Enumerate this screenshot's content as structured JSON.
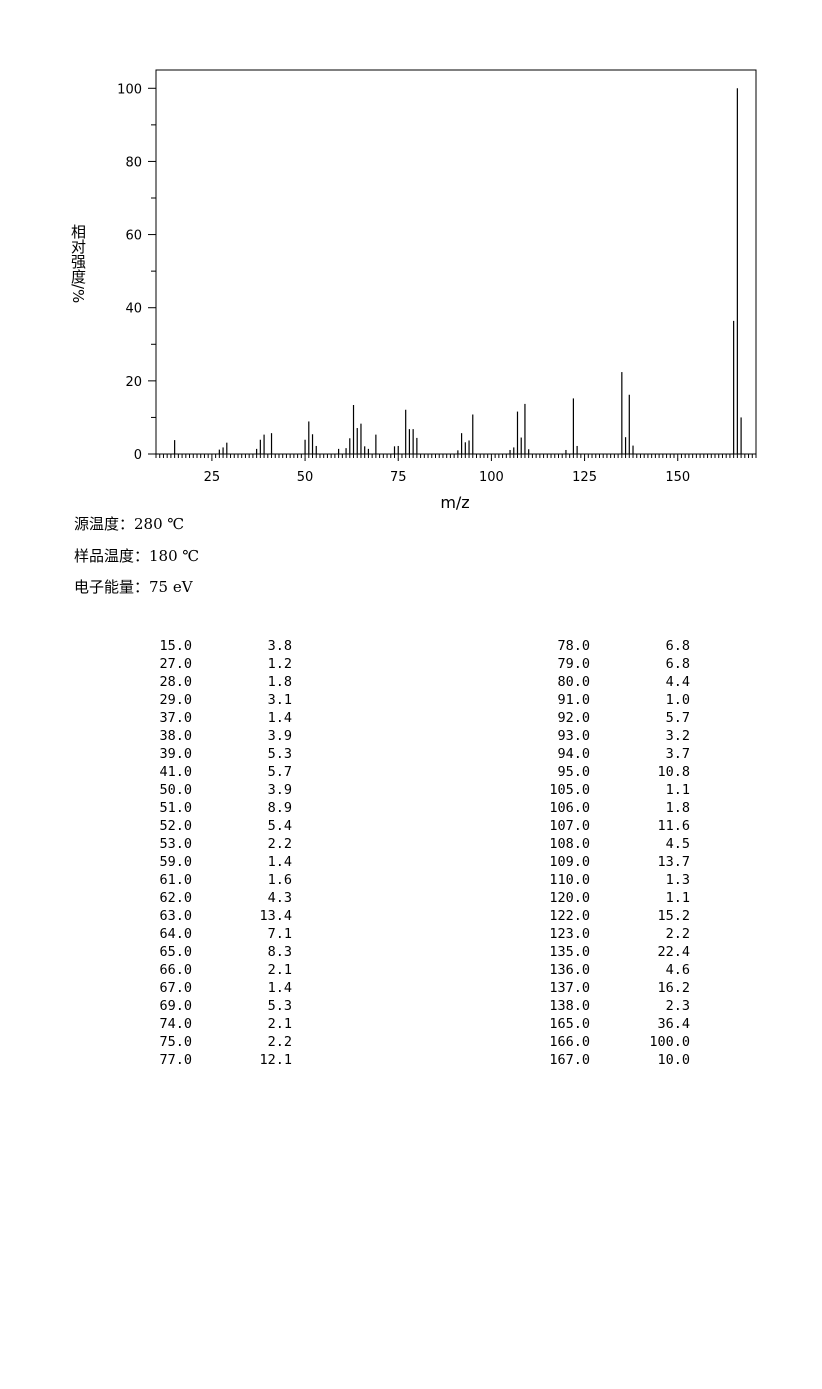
{
  "chart_data": {
    "type": "bar",
    "xlabel": "m/z",
    "ylabel": "相对强度/%",
    "xlim": [
      10,
      171
    ],
    "ylim": [
      0,
      105
    ],
    "x_ticks": [
      "25",
      "50",
      "75",
      "100",
      "125",
      "150"
    ],
    "y_ticks": [
      "0",
      "20",
      "40",
      "60",
      "80",
      "100"
    ],
    "grid": false,
    "peaks": [
      {
        "mz": 15.0,
        "intensity": 3.8
      },
      {
        "mz": 27.0,
        "intensity": 1.2
      },
      {
        "mz": 28.0,
        "intensity": 1.8
      },
      {
        "mz": 29.0,
        "intensity": 3.1
      },
      {
        "mz": 37.0,
        "intensity": 1.4
      },
      {
        "mz": 38.0,
        "intensity": 3.9
      },
      {
        "mz": 39.0,
        "intensity": 5.3
      },
      {
        "mz": 41.0,
        "intensity": 5.7
      },
      {
        "mz": 50.0,
        "intensity": 3.9
      },
      {
        "mz": 51.0,
        "intensity": 8.9
      },
      {
        "mz": 52.0,
        "intensity": 5.4
      },
      {
        "mz": 53.0,
        "intensity": 2.2
      },
      {
        "mz": 59.0,
        "intensity": 1.4
      },
      {
        "mz": 61.0,
        "intensity": 1.6
      },
      {
        "mz": 62.0,
        "intensity": 4.3
      },
      {
        "mz": 63.0,
        "intensity": 13.4
      },
      {
        "mz": 64.0,
        "intensity": 7.1
      },
      {
        "mz": 65.0,
        "intensity": 8.3
      },
      {
        "mz": 66.0,
        "intensity": 2.1
      },
      {
        "mz": 67.0,
        "intensity": 1.4
      },
      {
        "mz": 69.0,
        "intensity": 5.3
      },
      {
        "mz": 74.0,
        "intensity": 2.1
      },
      {
        "mz": 75.0,
        "intensity": 2.2
      },
      {
        "mz": 77.0,
        "intensity": 12.1
      },
      {
        "mz": 78.0,
        "intensity": 6.8
      },
      {
        "mz": 79.0,
        "intensity": 6.8
      },
      {
        "mz": 80.0,
        "intensity": 4.4
      },
      {
        "mz": 91.0,
        "intensity": 1.0
      },
      {
        "mz": 92.0,
        "intensity": 5.7
      },
      {
        "mz": 93.0,
        "intensity": 3.2
      },
      {
        "mz": 94.0,
        "intensity": 3.7
      },
      {
        "mz": 95.0,
        "intensity": 10.8
      },
      {
        "mz": 105.0,
        "intensity": 1.1
      },
      {
        "mz": 106.0,
        "intensity": 1.8
      },
      {
        "mz": 107.0,
        "intensity": 11.6
      },
      {
        "mz": 108.0,
        "intensity": 4.5
      },
      {
        "mz": 109.0,
        "intensity": 13.7
      },
      {
        "mz": 110.0,
        "intensity": 1.3
      },
      {
        "mz": 120.0,
        "intensity": 1.1
      },
      {
        "mz": 122.0,
        "intensity": 15.2
      },
      {
        "mz": 123.0,
        "intensity": 2.2
      },
      {
        "mz": 135.0,
        "intensity": 22.4
      },
      {
        "mz": 136.0,
        "intensity": 4.6
      },
      {
        "mz": 137.0,
        "intensity": 16.2
      },
      {
        "mz": 138.0,
        "intensity": 2.3
      },
      {
        "mz": 165.0,
        "intensity": 36.4
      },
      {
        "mz": 166.0,
        "intensity": 100.0
      },
      {
        "mz": 167.0,
        "intensity": 10.0
      }
    ]
  },
  "conditions": {
    "source_temp": "源温度：280 ℃",
    "sample_temp": "样品温度：180 ℃",
    "electron_energy": "电子能量：75 eV"
  },
  "table": {
    "left": [
      [
        "15.0",
        "3.8"
      ],
      [
        "27.0",
        "1.2"
      ],
      [
        "28.0",
        "1.8"
      ],
      [
        "29.0",
        "3.1"
      ],
      [
        "37.0",
        "1.4"
      ],
      [
        "38.0",
        "3.9"
      ],
      [
        "39.0",
        "5.3"
      ],
      [
        "41.0",
        "5.7"
      ],
      [
        "50.0",
        "3.9"
      ],
      [
        "51.0",
        "8.9"
      ],
      [
        "52.0",
        "5.4"
      ],
      [
        "53.0",
        "2.2"
      ],
      [
        "59.0",
        "1.4"
      ],
      [
        "61.0",
        "1.6"
      ],
      [
        "62.0",
        "4.3"
      ],
      [
        "63.0",
        "13.4"
      ],
      [
        "64.0",
        "7.1"
      ],
      [
        "65.0",
        "8.3"
      ],
      [
        "66.0",
        "2.1"
      ],
      [
        "67.0",
        "1.4"
      ],
      [
        "69.0",
        "5.3"
      ],
      [
        "74.0",
        "2.1"
      ],
      [
        "75.0",
        "2.2"
      ],
      [
        "77.0",
        "12.1"
      ]
    ],
    "right": [
      [
        "78.0",
        "6.8"
      ],
      [
        "79.0",
        "6.8"
      ],
      [
        "80.0",
        "4.4"
      ],
      [
        "91.0",
        "1.0"
      ],
      [
        "92.0",
        "5.7"
      ],
      [
        "93.0",
        "3.2"
      ],
      [
        "94.0",
        "3.7"
      ],
      [
        "95.0",
        "10.8"
      ],
      [
        "105.0",
        "1.1"
      ],
      [
        "106.0",
        "1.8"
      ],
      [
        "107.0",
        "11.6"
      ],
      [
        "108.0",
        "4.5"
      ],
      [
        "109.0",
        "13.7"
      ],
      [
        "110.0",
        "1.3"
      ],
      [
        "120.0",
        "1.1"
      ],
      [
        "122.0",
        "15.2"
      ],
      [
        "123.0",
        "2.2"
      ],
      [
        "135.0",
        "22.4"
      ],
      [
        "136.0",
        "4.6"
      ],
      [
        "137.0",
        "16.2"
      ],
      [
        "138.0",
        "2.3"
      ],
      [
        "165.0",
        "36.4"
      ],
      [
        "166.0",
        "100.0"
      ],
      [
        "167.0",
        "10.0"
      ]
    ]
  }
}
